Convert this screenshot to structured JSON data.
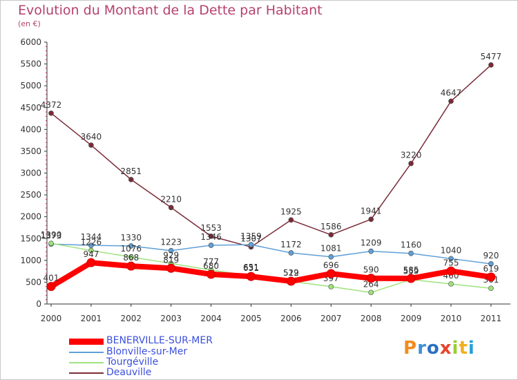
{
  "title": "Evolution du Montant de la Dette par Habitant",
  "unit": "(en €)",
  "chart_data": {
    "type": "line",
    "title": "Evolution du Montant de la Dette par Habitant",
    "ylabel": "(en €)",
    "xlabel": "",
    "ylim": [
      0,
      6000
    ],
    "yticks": [
      0,
      500,
      1000,
      1500,
      2000,
      2500,
      3000,
      3500,
      4000,
      4500,
      5000,
      5500,
      6000
    ],
    "x": [
      "2000",
      "2001",
      "2002",
      "2003",
      "2004",
      "2005",
      "2006",
      "2007",
      "2008",
      "2009",
      "2010",
      "2011"
    ],
    "grid": false,
    "legend_position": "bottom-left",
    "series": [
      {
        "name": "Deauville",
        "color": "#7a2a36",
        "values": [
          4372,
          3640,
          2851,
          2210,
          1553,
          1307,
          1925,
          1586,
          1941,
          3220,
          4647,
          5477
        ]
      },
      {
        "name": "Blonville-sur-Mer",
        "color": "#5f9fd6",
        "values": [
          1373,
          1344,
          1330,
          1223,
          1346,
          1359,
          1172,
          1081,
          1209,
          1160,
          1040,
          920
        ]
      },
      {
        "name": "Tourgéville",
        "color": "#9ee27c",
        "values": [
          1390,
          1226,
          1076,
          929,
          777,
          651,
          519,
          397,
          264,
          559,
          460,
          361
        ]
      },
      {
        "name": "BENERVILLE-SUR-MER",
        "color": "#ff0000",
        "values": [
          401,
          947,
          868,
          819,
          680,
          631,
          522,
          696,
          590,
          585,
          755,
          619
        ]
      }
    ]
  },
  "legend": [
    {
      "label": "BENERVILLE-SUR-MER",
      "color": "#ff0000"
    },
    {
      "label": "Blonville-sur-Mer",
      "color": "#5f9fd6"
    },
    {
      "label": "Tourgéville",
      "color": "#9ee27c"
    },
    {
      "label": "Deauville",
      "color": "#7a2a36"
    }
  ],
  "logo": {
    "text": "Proxiti",
    "letters": [
      "P",
      "r",
      "o",
      "x",
      "i",
      "t",
      "i"
    ],
    "colors": [
      "#f28c1e",
      "#3d8fd6",
      "#2b6fc2",
      "#e8452c",
      "#9acd32",
      "#f2b01e",
      "#2b9fd6"
    ]
  }
}
